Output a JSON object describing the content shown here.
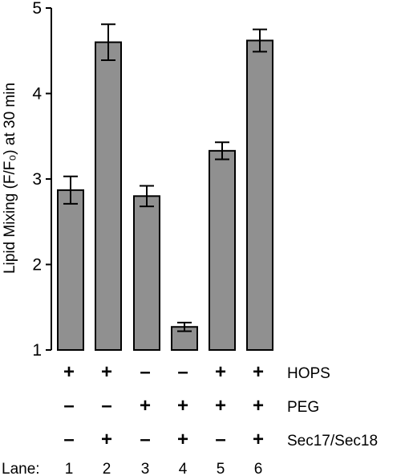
{
  "chart_data": {
    "type": "bar",
    "ylabel": "Lipid Mixing (F/F₀) at 30 min",
    "ylim": [
      1,
      5
    ],
    "yticks": [
      "1",
      "2",
      "3",
      "4",
      "5"
    ],
    "categories": [
      "1",
      "2",
      "3",
      "4",
      "5",
      "6"
    ],
    "values": [
      2.87,
      4.6,
      2.8,
      1.27,
      3.33,
      4.62
    ],
    "errors": [
      0.16,
      0.21,
      0.12,
      0.05,
      0.1,
      0.13
    ],
    "bar_color": "#909090",
    "conditions": [
      {
        "name": "HOPS",
        "signs": [
          "+",
          "+",
          "–",
          "–",
          "+",
          "+"
        ]
      },
      {
        "name": "PEG",
        "signs": [
          "–",
          "–",
          "+",
          "+",
          "+",
          "+"
        ]
      },
      {
        "name": "Sec17/Sec18",
        "signs": [
          "–",
          "+",
          "–",
          "+",
          "–",
          "+"
        ]
      }
    ],
    "lane_label": "Lane:"
  }
}
